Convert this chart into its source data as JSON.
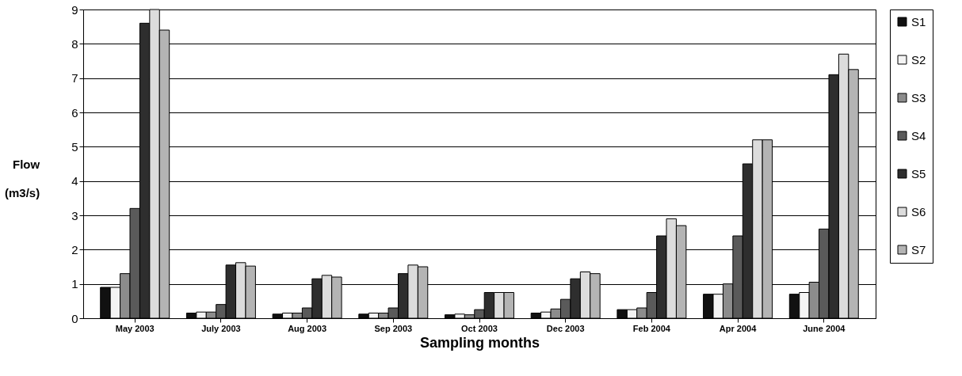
{
  "chart_data": {
    "type": "bar",
    "xlabel": "Sampling months",
    "ylabel": "Flow (m3/s)",
    "categories": [
      "May 2003",
      "July 2003",
      "Aug 2003",
      "Sep  2003",
      "Oct 2003",
      "Dec 2003",
      "Feb 2004",
      "Apr 2004",
      "June 2004"
    ],
    "series": [
      {
        "name": "S1",
        "color": "#111111",
        "values": [
          0.9,
          0.15,
          0.12,
          0.12,
          0.1,
          0.15,
          0.25,
          0.7,
          0.7
        ]
      },
      {
        "name": "S2",
        "color": "#f4f4f4",
        "values": [
          0.9,
          0.18,
          0.15,
          0.15,
          0.12,
          0.18,
          0.25,
          0.7,
          0.75
        ]
      },
      {
        "name": "S3",
        "color": "#8c8c8c",
        "values": [
          1.3,
          0.18,
          0.15,
          0.15,
          0.1,
          0.27,
          0.3,
          1.0,
          1.05
        ]
      },
      {
        "name": "S4",
        "color": "#5a5a5a",
        "values": [
          3.2,
          0.4,
          0.3,
          0.3,
          0.25,
          0.55,
          0.75,
          2.4,
          2.6
        ]
      },
      {
        "name": "S5",
        "color": "#2e2e2e",
        "values": [
          8.6,
          1.55,
          1.15,
          1.3,
          0.75,
          1.15,
          2.4,
          4.5,
          7.1
        ]
      },
      {
        "name": "S6",
        "color": "#dcdcdc",
        "values": [
          9.0,
          1.62,
          1.25,
          1.55,
          0.75,
          1.35,
          2.9,
          5.2,
          7.7
        ]
      },
      {
        "name": "S7",
        "color": "#b4b4b4",
        "values": [
          8.4,
          1.52,
          1.2,
          1.5,
          0.75,
          1.3,
          2.7,
          5.2,
          7.25
        ]
      }
    ],
    "ylim": [
      0,
      9
    ],
    "yticks": [
      0,
      1,
      2,
      3,
      4,
      5,
      6,
      7,
      8,
      9
    ],
    "grid": "y",
    "legend": "right"
  }
}
